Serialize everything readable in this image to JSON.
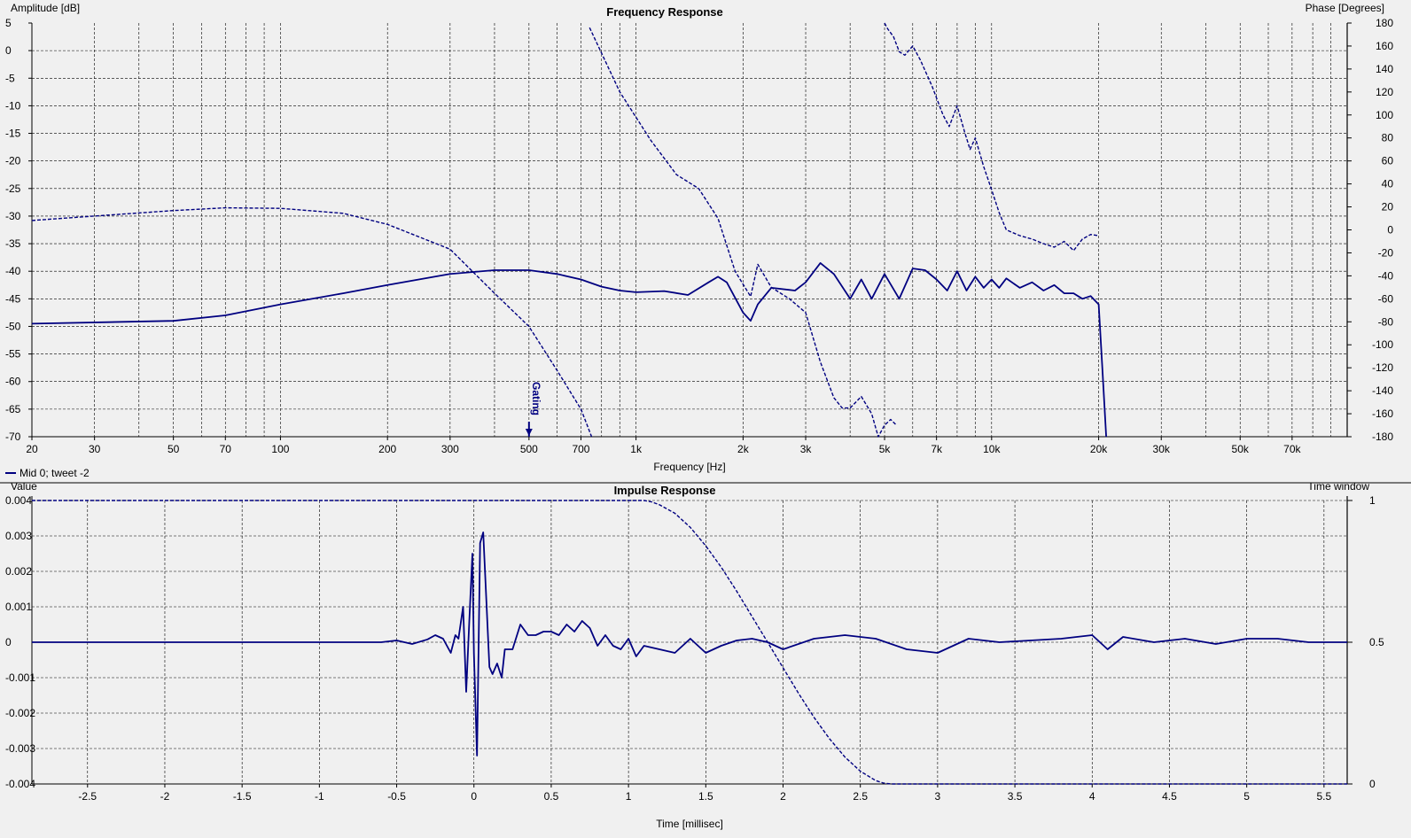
{
  "colors": {
    "trace": "#000080",
    "grid": "#000000",
    "background": "#f0f0f0"
  },
  "legend": {
    "text": "Mid 0; tweet -2"
  },
  "chart_data": [
    {
      "type": "line",
      "title": "Frequency Response",
      "xlabel": "Frequency [Hz]",
      "ylabel": "Amplitude [dB]",
      "y2label": "Phase [Degrees]",
      "xscale": "log",
      "xlim": [
        20,
        100000
      ],
      "ylim": [
        -70,
        5
      ],
      "y2lim": [
        -180,
        180
      ],
      "x_ticks": [
        20,
        30,
        50,
        70,
        100,
        200,
        300,
        500,
        700,
        1000,
        2000,
        3000,
        5000,
        7000,
        10000,
        20000,
        30000,
        50000,
        70000
      ],
      "x_tick_labels": [
        "20",
        "30",
        "50",
        "70",
        "100",
        "200",
        "300",
        "500",
        "700",
        "1k",
        "2k",
        "3k",
        "5k",
        "7k",
        "10k",
        "20k",
        "30k",
        "50k",
        "70k"
      ],
      "y_ticks": [
        5,
        0,
        -5,
        -10,
        -15,
        -20,
        -25,
        -30,
        -35,
        -40,
        -45,
        -50,
        -55,
        -60,
        -65,
        -70
      ],
      "y2_ticks": [
        180,
        160,
        140,
        120,
        100,
        80,
        60,
        40,
        20,
        0,
        -20,
        -40,
        -60,
        -80,
        -100,
        -120,
        -140,
        -160,
        -180
      ],
      "marker": {
        "label": "Gating",
        "x": 500
      },
      "grid": true,
      "series": [
        {
          "name": "Mid 0; tweet -2",
          "style": "solid",
          "axis": "amplitude",
          "x": [
            20,
            50,
            70,
            100,
            150,
            200,
            300,
            400,
            500,
            600,
            700,
            800,
            900,
            1000,
            1200,
            1400,
            1600,
            1700,
            1800,
            2000,
            2100,
            2200,
            2400,
            2800,
            3000,
            3300,
            3600,
            4000,
            4300,
            4600,
            5000,
            5500,
            6000,
            6500,
            7000,
            7500,
            8000,
            8500,
            9000,
            9500,
            10000,
            10500,
            11000,
            12000,
            13000,
            14000,
            15000,
            16000,
            17000,
            18000,
            19000,
            20000,
            20500,
            21000
          ],
          "y": [
            -49.5,
            -49,
            -48,
            -46,
            -44,
            -42.5,
            -40.5,
            -39.8,
            -39.8,
            -40.5,
            -41.5,
            -42.8,
            -43.5,
            -43.8,
            -43.6,
            -44.3,
            -42,
            -41,
            -42,
            -47.5,
            -49,
            -46,
            -43,
            -43.5,
            -42,
            -38.5,
            -40.5,
            -45,
            -41.5,
            -45,
            -40.5,
            -45,
            -39.5,
            -39.8,
            -41.5,
            -43.5,
            -40,
            -43.5,
            -41,
            -43,
            -41.5,
            -43,
            -41.3,
            -43,
            -42,
            -43.5,
            -42.5,
            -44,
            -44,
            -45,
            -44.5,
            -46,
            -58,
            -70
          ]
        },
        {
          "name": "Mid 0; tweet -2",
          "style": "dashed",
          "axis": "amplitude",
          "x": [
            20,
            30,
            50,
            70,
            100,
            150,
            200,
            300,
            400,
            500,
            600,
            700,
            750
          ],
          "y": [
            -30.8,
            -30,
            -29,
            -28.5,
            -28.6,
            -29.5,
            -31.5,
            -36,
            -44,
            -50,
            -58,
            -65,
            -70
          ]
        },
        {
          "name": "Mid 0; tweet -2",
          "style": "dashed",
          "axis": "phase",
          "x": [
            740,
            900,
            1100,
            1300,
            1500,
            1700,
            1900,
            2100,
            2200,
            2400,
            2700,
            3000,
            3300,
            3600,
            3800,
            4000,
            4300,
            4600,
            4800,
            5000,
            5200,
            5400
          ],
          "y": [
            176,
            120,
            78,
            48,
            36,
            10,
            -36,
            -58,
            -30,
            -50,
            -60,
            -72,
            -115,
            -146,
            -155,
            -155,
            -145,
            -160,
            -180,
            -170,
            -165,
            -170
          ]
        },
        {
          "name": "Mid 0; tweet -2",
          "style": "dashed",
          "axis": "phase",
          "x": [
            5000,
            5100,
            5300,
            5500,
            5700,
            6000,
            6300,
            6800,
            7300,
            7600,
            8000,
            8400,
            8700,
            9000,
            9500,
            10000,
            10500,
            11000,
            12000,
            13000,
            14000,
            15000,
            16000,
            17000,
            18000,
            19000,
            20000
          ],
          "y": [
            180,
            175,
            168,
            155,
            152,
            160,
            148,
            125,
            100,
            90,
            108,
            85,
            70,
            80,
            55,
            35,
            15,
            0,
            -5,
            -8,
            -12,
            -15,
            -10,
            -18,
            -8,
            -4,
            -5
          ]
        }
      ]
    },
    {
      "type": "line",
      "title": "Impulse Response",
      "xlabel": "Time [millisec]",
      "ylabel": "Value",
      "y2label": "Time window",
      "xlim": [
        -2.86,
        5.65
      ],
      "ylim": [
        -0.004,
        0.004
      ],
      "y2lim": [
        0,
        1
      ],
      "x_ticks": [
        -2.5,
        -2,
        -1.5,
        -1,
        -0.5,
        0,
        0.5,
        1,
        1.5,
        2,
        2.5,
        3,
        3.5,
        4,
        4.5,
        5,
        5.5
      ],
      "x_tick_labels": [
        "-2.5",
        "-2",
        "-1.5",
        "-1",
        "-0.5",
        "0",
        "0.5",
        "1",
        "1.5",
        "2",
        "2.5",
        "3",
        "3.5",
        "4",
        "4.5",
        "5",
        "5.5"
      ],
      "y_ticks": [
        0.004,
        0.003,
        0.002,
        0.001,
        0,
        -0.001,
        -0.002,
        -0.003,
        -0.004
      ],
      "y_tick_labels": [
        "0.004",
        "0.003",
        "0.002",
        "0.001",
        "0",
        "-0.001",
        "-0.002",
        "-0.003",
        "-0.004"
      ],
      "y2_ticks": [
        1,
        0.5,
        0
      ],
      "y2_tick_labels": [
        "1",
        "0.5",
        "0"
      ],
      "grid": true,
      "series": [
        {
          "name": "Mid 0; tweet -2",
          "style": "solid",
          "axis": "value",
          "x": [
            -2.86,
            -0.6,
            -0.5,
            -0.4,
            -0.3,
            -0.25,
            -0.2,
            -0.15,
            -0.12,
            -0.1,
            -0.07,
            -0.05,
            -0.03,
            -0.01,
            0,
            0.02,
            0.04,
            0.06,
            0.08,
            0.1,
            0.12,
            0.15,
            0.18,
            0.2,
            0.25,
            0.3,
            0.35,
            0.4,
            0.45,
            0.5,
            0.55,
            0.6,
            0.65,
            0.7,
            0.75,
            0.8,
            0.85,
            0.9,
            0.95,
            1,
            1.05,
            1.1,
            1.2,
            1.3,
            1.4,
            1.5,
            1.6,
            1.7,
            1.8,
            1.9,
            2,
            2.2,
            2.4,
            2.6,
            2.8,
            3,
            3.2,
            3.4,
            3.6,
            3.8,
            4,
            4.1,
            4.2,
            4.4,
            4.6,
            4.8,
            5,
            5.2,
            5.4,
            5.65
          ],
          "y": [
            0,
            0,
            5e-05,
            -5e-05,
            8e-05,
            0.0002,
            0.0001,
            -0.0003,
            0.0002,
            0.0001,
            0.001,
            -0.0014,
            0.0006,
            0.0025,
            -0.0003,
            -0.0032,
            0.0028,
            0.0031,
            0.0012,
            -0.0007,
            -0.0009,
            -0.0006,
            -0.001,
            -0.0002,
            -0.0002,
            0.0005,
            0.0002,
            0.0002,
            0.0003,
            0.0003,
            0.0002,
            0.0005,
            0.0003,
            0.0006,
            0.0004,
            -0.0001,
            0.0002,
            -0.0001,
            -0.0002,
            0.0001,
            -0.0004,
            -0.0001,
            -0.0002,
            -0.0003,
            0.0001,
            -0.0003,
            -0.0001,
            5e-05,
            0.0001,
            0,
            -0.0002,
            0.0001,
            0.0002,
            0.0001,
            -0.0002,
            -0.0003,
            0.0001,
            0,
            5e-05,
            0.0001,
            0.0002,
            -0.0002,
            0.00015,
            0,
            0.0001,
            -5e-05,
            0.0001,
            0.0001,
            0,
            0
          ]
        },
        {
          "name": "Mid 0; tweet -2",
          "style": "dashed",
          "axis": "window",
          "x": [
            -2.86,
            0,
            0.99,
            1.1,
            1.15,
            1.2,
            1.3,
            1.4,
            1.5,
            1.6,
            1.7,
            1.8,
            1.9,
            2,
            2.1,
            2.2,
            2.3,
            2.4,
            2.5,
            2.6,
            2.65,
            2.7,
            5.65
          ],
          "y": [
            1,
            1,
            1,
            1,
            0.995,
            0.985,
            0.955,
            0.905,
            0.84,
            0.765,
            0.68,
            0.59,
            0.5,
            0.41,
            0.32,
            0.235,
            0.16,
            0.095,
            0.045,
            0.012,
            0.003,
            0,
            0
          ]
        }
      ]
    }
  ]
}
